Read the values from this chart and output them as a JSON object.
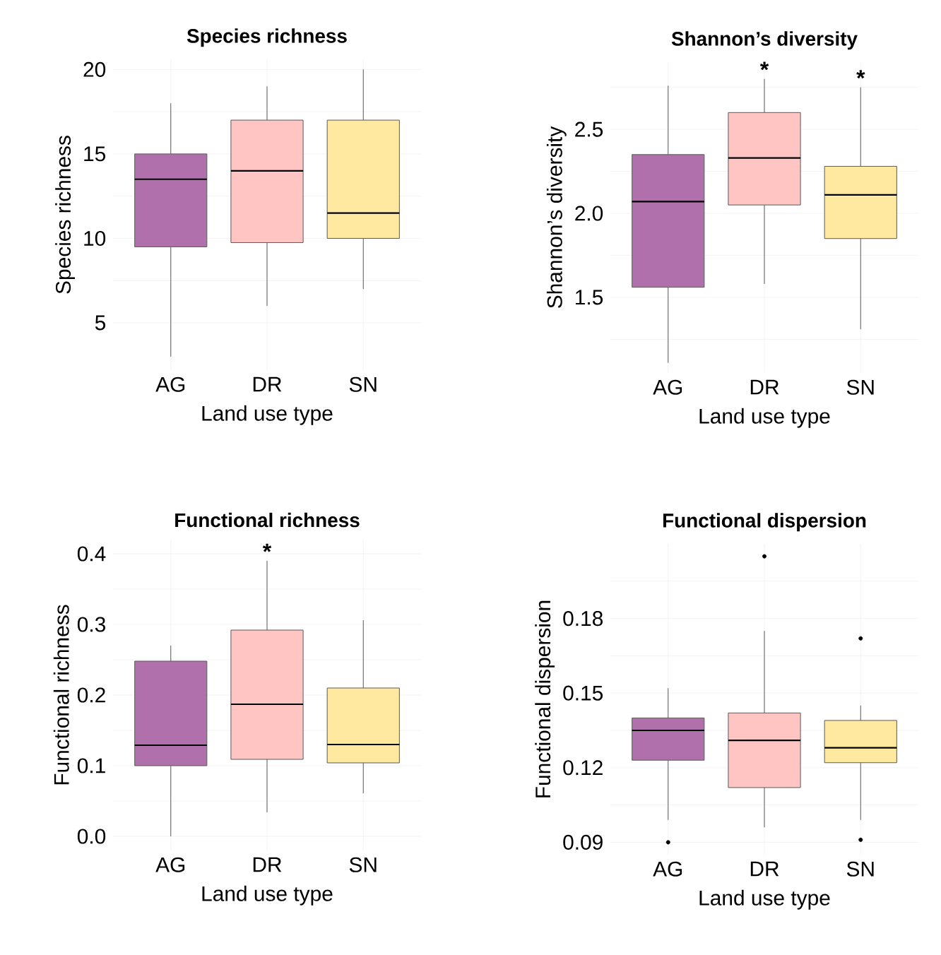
{
  "chart_data": [
    {
      "type": "box",
      "title": "Species richness",
      "xlabel": "Land use type",
      "ylabel": "Species richness",
      "categories": [
        "AG",
        "DR",
        "SN"
      ],
      "colors": [
        "#b070ab",
        "#ffc5c3",
        "#ffe8a0"
      ],
      "ylim": [
        2.2,
        20.6
      ],
      "yticks": [
        5,
        {
          "value": 7.5,
          "label": null
        },
        10,
        {
          "value": 12.5,
          "label": null
        },
        15,
        {
          "value": 17.5,
          "label": null
        },
        20
      ],
      "grid": true,
      "boxes": [
        {
          "low": 3,
          "q1": 9.5,
          "median": 13.5,
          "q3": 15,
          "high": 18
        },
        {
          "low": 6,
          "q1": 9.75,
          "median": 14,
          "q3": 17,
          "high": 19
        },
        {
          "low": 7,
          "q1": 10,
          "median": 11.5,
          "q3": 17,
          "high": 20
        }
      ]
    },
    {
      "type": "box",
      "title": "Shannon’s diversity",
      "xlabel": "Land use type",
      "ylabel": "Shannon’s diversity",
      "categories": [
        "AG",
        "DR",
        "SN"
      ],
      "colors": [
        "#b070ab",
        "#ffc5c3",
        "#ffe8a0"
      ],
      "ylim": [
        1.05,
        2.9
      ],
      "yticks": [
        {
          "value": 1.25,
          "label": null
        },
        {
          "value": 1.5,
          "label": "1.5"
        },
        {
          "value": 1.75,
          "label": null
        },
        {
          "value": 2,
          "label": "2.0"
        },
        {
          "value": 2.25,
          "label": null
        },
        {
          "value": 2.5,
          "label": "2.5"
        },
        {
          "value": 2.75,
          "label": null
        }
      ],
      "grid": true,
      "boxes": [
        {
          "low": 1.11,
          "q1": 1.56,
          "median": 2.07,
          "q3": 2.35,
          "high": 2.76
        },
        {
          "low": 1.58,
          "q1": 2.05,
          "median": 2.33,
          "q3": 2.6,
          "high": 2.8
        },
        {
          "low": 1.31,
          "q1": 1.85,
          "median": 2.11,
          "q3": 2.28,
          "high": 2.75
        }
      ],
      "annotations": [
        "*",
        "*"
      ]
    },
    {
      "type": "box",
      "title": "Functional richness",
      "xlabel": "Land use type",
      "ylabel": "Functional richness",
      "categories": [
        "AG",
        "DR",
        "SN"
      ],
      "colors": [
        "#b070ab",
        "#ffc5c3",
        "#ffe8a0"
      ],
      "ylim": [
        -0.02,
        0.42
      ],
      "yticks": [
        {
          "value": 0,
          "label": "0.0"
        },
        {
          "value": 0.05,
          "label": null
        },
        0.1,
        {
          "value": 0.15,
          "label": null
        },
        0.2,
        {
          "value": 0.25,
          "label": null
        },
        0.3,
        {
          "value": 0.35,
          "label": null
        },
        0.4
      ],
      "grid": true,
      "boxes": [
        {
          "low": 0.0,
          "q1": 0.1,
          "median": 0.129,
          "q3": 0.248,
          "high": 0.27
        },
        {
          "low": 0.034,
          "q1": 0.109,
          "median": 0.187,
          "q3": 0.292,
          "high": 0.39
        },
        {
          "low": 0.061,
          "q1": 0.104,
          "median": 0.13,
          "q3": 0.21,
          "high": 0.306
        }
      ],
      "annotations": [
        "*"
      ]
    },
    {
      "type": "box",
      "title": "Functional dispersion",
      "xlabel": "Land use type",
      "ylabel": "Functional dispersion",
      "categories": [
        "AG",
        "DR",
        "SN"
      ],
      "colors": [
        "#b070ab",
        "#ffc5c3",
        "#ffe8a0"
      ],
      "ylim": [
        0.085,
        0.21
      ],
      "yticks": [
        0.09,
        {
          "value": 0.105,
          "label": null
        },
        0.12,
        {
          "value": 0.135,
          "label": null
        },
        0.15,
        {
          "value": 0.165,
          "label": null
        },
        0.18,
        {
          "value": 0.195,
          "label": null
        }
      ],
      "grid": true,
      "boxes": [
        {
          "low": 0.099,
          "q1": 0.123,
          "median": 0.135,
          "q3": 0.14,
          "high": 0.152,
          "outliers": [
            0.09
          ]
        },
        {
          "low": 0.096,
          "q1": 0.112,
          "median": 0.131,
          "q3": 0.142,
          "high": 0.175,
          "outliers": [
            0.205
          ]
        },
        {
          "low": 0.099,
          "q1": 0.122,
          "median": 0.128,
          "q3": 0.139,
          "high": 0.145,
          "outliers": [
            0.172,
            0.091
          ]
        }
      ]
    }
  ]
}
